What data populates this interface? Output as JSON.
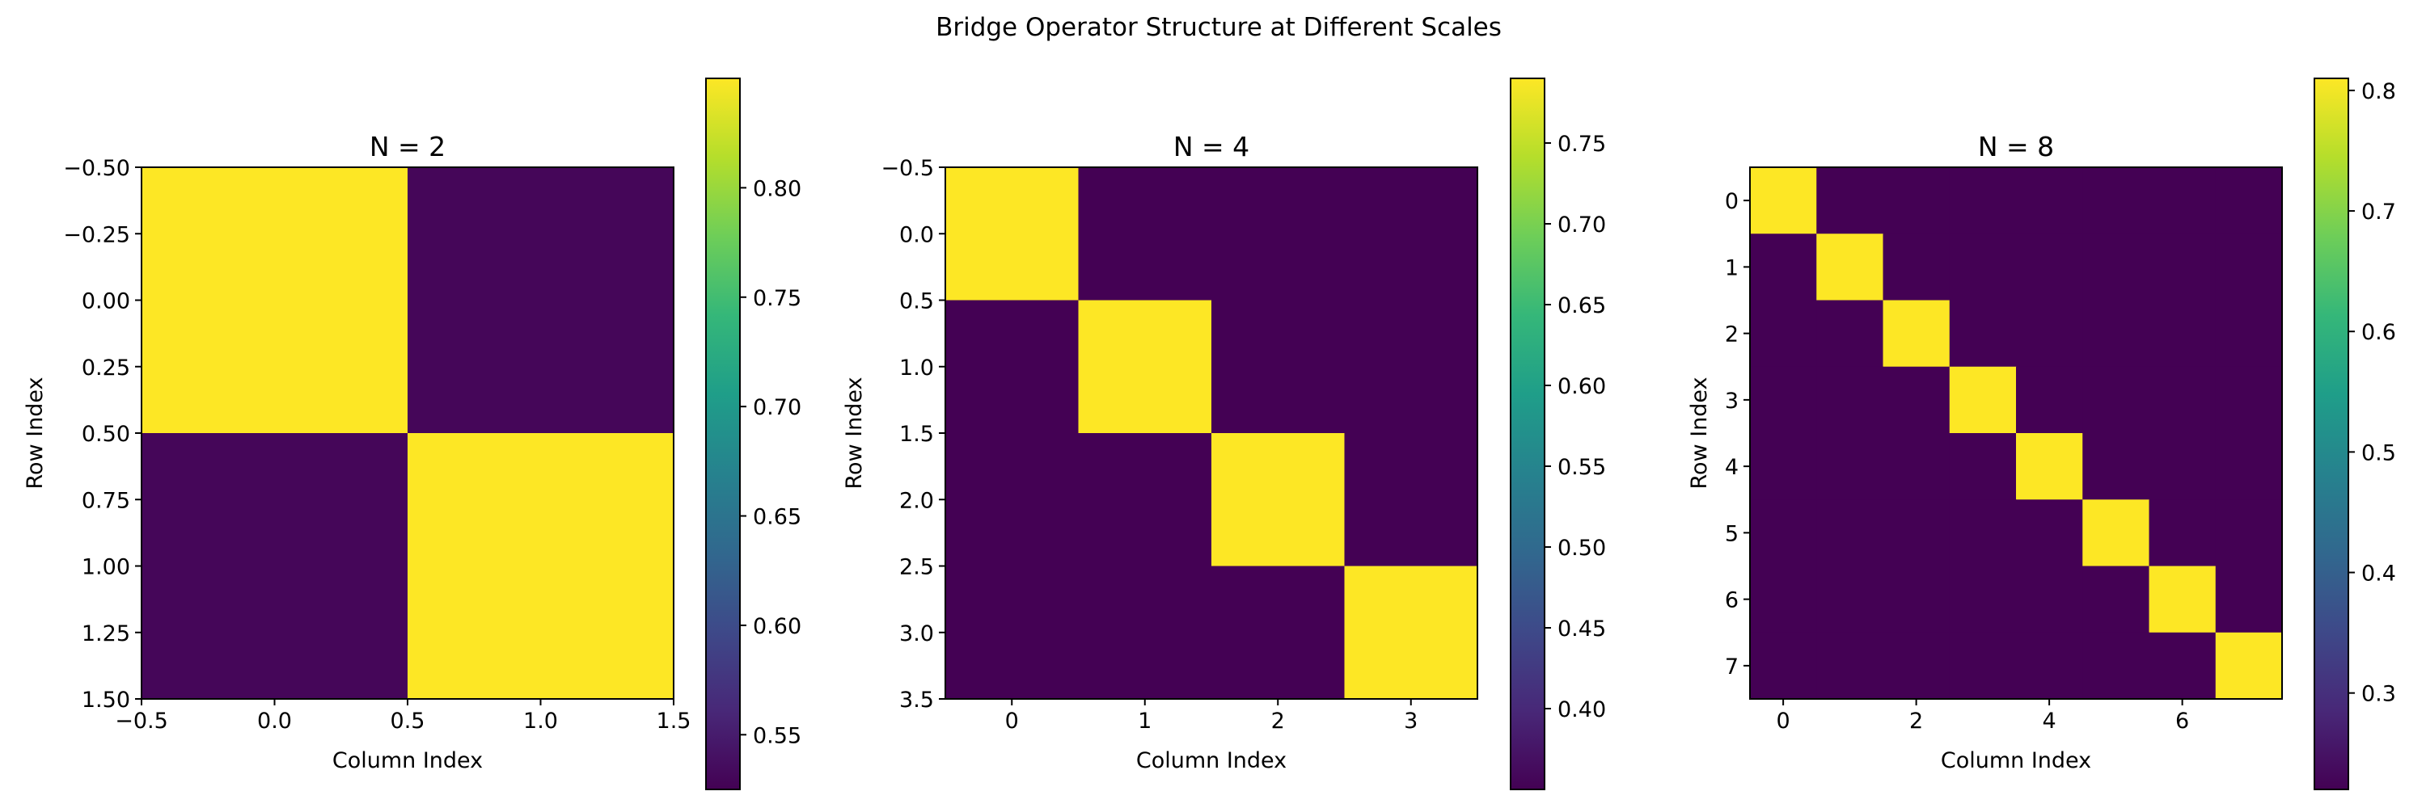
{
  "figure": {
    "title": "Bridge Operator Structure at Different Scales"
  },
  "colormap": {
    "name": "viridis",
    "low": "#440154",
    "high": "#fde725",
    "stops": [
      "#440154",
      "#482878",
      "#3e4989",
      "#31688e",
      "#26828e",
      "#1f9e89",
      "#35b779",
      "#6ece58",
      "#b5de2b",
      "#fde725"
    ]
  },
  "chart_data": [
    {
      "type": "heatmap",
      "title": "N = 2",
      "xlabel": "Column Index",
      "ylabel": "Row Index",
      "xlim": [
        -0.5,
        1.5
      ],
      "ylim": [
        1.5,
        -0.5
      ],
      "xticks": [
        -0.5,
        0.0,
        0.5,
        1.0,
        1.5
      ],
      "xtick_labels": [
        "−0.5",
        "0.0",
        "0.5",
        "1.0",
        "1.5"
      ],
      "yticks": [
        -0.5,
        -0.25,
        0.0,
        0.25,
        0.5,
        0.75,
        1.0,
        1.25,
        1.5
      ],
      "ytick_labels": [
        "−0.50",
        "−0.25",
        "0.00",
        "0.25",
        "0.50",
        "0.75",
        "1.00",
        "1.25",
        "1.50"
      ],
      "matrix": [
        [
          0.85,
          0.53
        ],
        [
          0.53,
          0.85
        ]
      ],
      "colorbar": {
        "vmin": 0.525,
        "vmax": 0.85,
        "ticks": [
          0.55,
          0.6,
          0.65,
          0.7,
          0.75,
          0.8
        ],
        "tick_labels": [
          "0.55",
          "0.60",
          "0.65",
          "0.70",
          "0.75",
          "0.80"
        ]
      }
    },
    {
      "type": "heatmap",
      "title": "N = 4",
      "xlabel": "Column Index",
      "ylabel": "Row Index",
      "xlim": [
        -0.5,
        3.5
      ],
      "ylim": [
        3.5,
        -0.5
      ],
      "xticks": [
        0,
        1,
        2,
        3
      ],
      "xtick_labels": [
        "0",
        "1",
        "2",
        "3"
      ],
      "yticks": [
        -0.5,
        0.0,
        0.5,
        1.0,
        1.5,
        2.0,
        2.5,
        3.0,
        3.5
      ],
      "ytick_labels": [
        "−0.5",
        "0.0",
        "0.5",
        "1.0",
        "1.5",
        "2.0",
        "2.5",
        "3.0",
        "3.5"
      ],
      "matrix": [
        [
          0.79,
          0.35,
          0.35,
          0.35
        ],
        [
          0.35,
          0.79,
          0.35,
          0.35
        ],
        [
          0.35,
          0.35,
          0.79,
          0.35
        ],
        [
          0.35,
          0.35,
          0.35,
          0.79
        ]
      ],
      "colorbar": {
        "vmin": 0.35,
        "vmax": 0.79,
        "ticks": [
          0.4,
          0.45,
          0.5,
          0.55,
          0.6,
          0.65,
          0.7,
          0.75
        ],
        "tick_labels": [
          "0.40",
          "0.45",
          "0.50",
          "0.55",
          "0.60",
          "0.65",
          "0.70",
          "0.75"
        ]
      }
    },
    {
      "type": "heatmap",
      "title": "N = 8",
      "xlabel": "Column Index",
      "ylabel": "Row Index",
      "xlim": [
        -0.5,
        7.5
      ],
      "ylim": [
        7.5,
        -0.5
      ],
      "xticks": [
        0,
        2,
        4,
        6
      ],
      "xtick_labels": [
        "0",
        "2",
        "4",
        "6"
      ],
      "yticks": [
        0,
        1,
        2,
        3,
        4,
        5,
        6,
        7
      ],
      "ytick_labels": [
        "0",
        "1",
        "2",
        "3",
        "4",
        "5",
        "6",
        "7"
      ],
      "matrix": [
        [
          0.81,
          0.22,
          0.22,
          0.22,
          0.22,
          0.22,
          0.22,
          0.22
        ],
        [
          0.22,
          0.81,
          0.22,
          0.22,
          0.22,
          0.22,
          0.22,
          0.22
        ],
        [
          0.22,
          0.22,
          0.81,
          0.22,
          0.22,
          0.22,
          0.22,
          0.22
        ],
        [
          0.22,
          0.22,
          0.22,
          0.81,
          0.22,
          0.22,
          0.22,
          0.22
        ],
        [
          0.22,
          0.22,
          0.22,
          0.22,
          0.81,
          0.22,
          0.22,
          0.22
        ],
        [
          0.22,
          0.22,
          0.22,
          0.22,
          0.22,
          0.81,
          0.22,
          0.22
        ],
        [
          0.22,
          0.22,
          0.22,
          0.22,
          0.22,
          0.22,
          0.81,
          0.22
        ],
        [
          0.22,
          0.22,
          0.22,
          0.22,
          0.22,
          0.22,
          0.22,
          0.81
        ]
      ],
      "colorbar": {
        "vmin": 0.22,
        "vmax": 0.81,
        "ticks": [
          0.3,
          0.4,
          0.5,
          0.6,
          0.7,
          0.8
        ],
        "tick_labels": [
          "0.3",
          "0.4",
          "0.5",
          "0.6",
          "0.7",
          "0.8"
        ]
      }
    }
  ]
}
